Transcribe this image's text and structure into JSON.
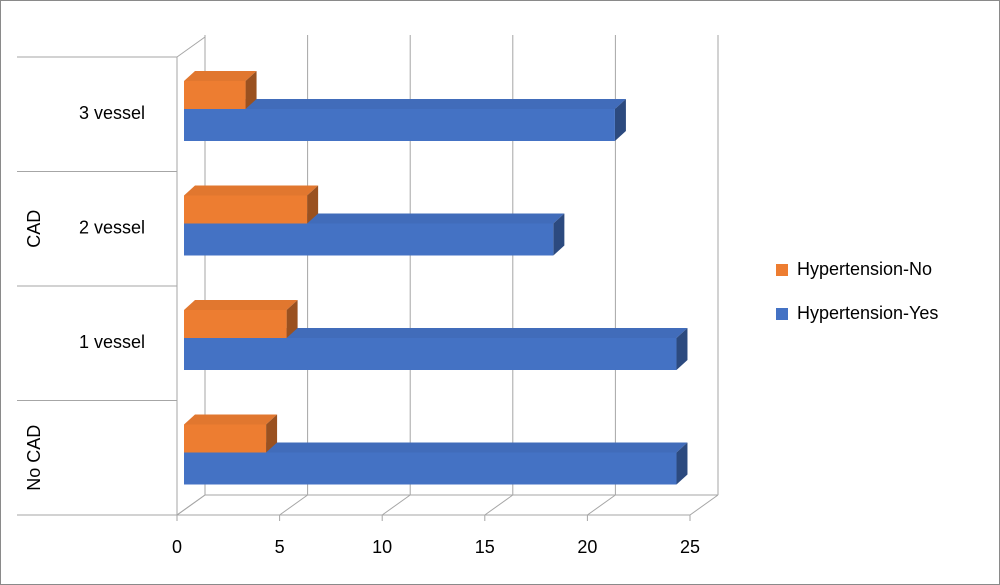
{
  "chart_data": {
    "type": "bar",
    "orientation": "horizontal",
    "categories": [
      null,
      "1 vessel",
      "2 vessel",
      "3 vessel"
    ],
    "category_groups": [
      {
        "name": "No CAD",
        "count": 1
      },
      {
        "name": "CAD",
        "count": 3
      }
    ],
    "series": [
      {
        "name": "Hypertension-No",
        "color": "#ed7d31",
        "values": [
          4,
          5,
          6,
          3
        ]
      },
      {
        "name": "Hypertension-Yes",
        "color": "#4472c4",
        "values": [
          24,
          24,
          18,
          21
        ]
      }
    ],
    "xlim": [
      0,
      25
    ],
    "xticks": [
      0,
      5,
      10,
      15,
      20,
      25
    ],
    "grid": true,
    "legend": "right"
  }
}
